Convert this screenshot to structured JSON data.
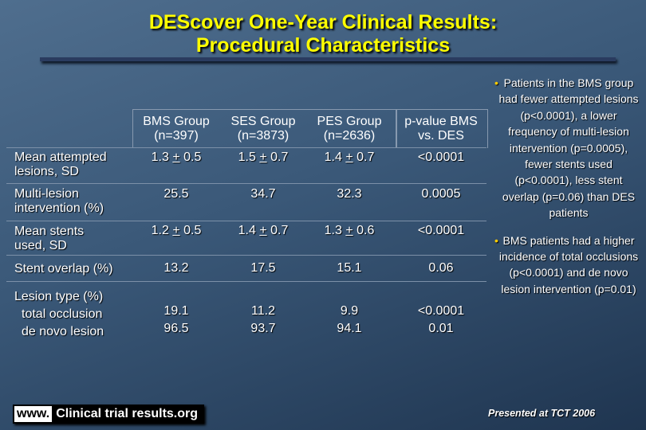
{
  "title": {
    "line1": "DEScover One-Year Clinical Results:",
    "line2": "Procedural Characteristics"
  },
  "table": {
    "columns": [
      {
        "line1": "BMS Group",
        "line2": "(n=397)"
      },
      {
        "line1": "SES Group",
        "line2": "(n=3873)"
      },
      {
        "line1": "PES Group",
        "line2": "(n=2636)"
      },
      {
        "line1": "p-value BMS",
        "line2": "vs. DES"
      }
    ],
    "rows": [
      {
        "label1": "Mean attempted",
        "label2": "lesions, SD",
        "bms": {
          "a": "1.3 ",
          "pm": "+",
          "b": " 0.5"
        },
        "ses": {
          "a": "1.5 ",
          "pm": "+",
          "b": " 0.7"
        },
        "pes": {
          "a": "1.4 ",
          "pm": "+",
          "b": " 0.7"
        },
        "p": "<0.0001"
      },
      {
        "label1": "Multi-lesion",
        "label2": "intervention (%)",
        "bms": "25.5",
        "ses": "34.7",
        "pes": "32.3",
        "p": "0.0005"
      },
      {
        "label1": "Mean stents",
        "label2": "used, SD",
        "bms": {
          "a": "1.2 ",
          "pm": "+",
          "b": " 0.5"
        },
        "ses": {
          "a": "1.4 ",
          "pm": "+",
          "b": " 0.7"
        },
        "pes": {
          "a": "1.3 ",
          "pm": "+",
          "b": " 0.6"
        },
        "p": "<0.0001"
      },
      {
        "label1": "Stent overlap (%)",
        "bms": "13.2",
        "ses": "17.5",
        "pes": "15.1",
        "p": "0.06"
      },
      {
        "label1": "Lesion type (%)",
        "label2": "total occlusion",
        "label3": "de novo lesion",
        "bms": [
          "19.1",
          "96.5"
        ],
        "ses": [
          "11.2",
          "93.7"
        ],
        "pes": [
          "9.9",
          "94.1"
        ],
        "p": [
          "<0.0001",
          "0.01"
        ]
      }
    ]
  },
  "bullets": [
    "Patients in the BMS group had fewer attempted lesions (p<0.0001), a lower frequency of multi-lesion intervention (p=0.0005), fewer stents used (p<0.0001), less stent overlap (p=0.06) than DES patients",
    "BMS patients had a higher incidence of total occlusions (p<0.0001) and de novo lesion intervention (p=0.01)"
  ],
  "bullet_symbol": "•",
  "footer": {
    "logo_www": "www.",
    "logo_site": "Clinical trial results.org",
    "presented": "Presented at TCT 2006"
  },
  "colors": {
    "title": "#ffff00",
    "bullet": "#ffcc00",
    "background": "#3a5878"
  }
}
